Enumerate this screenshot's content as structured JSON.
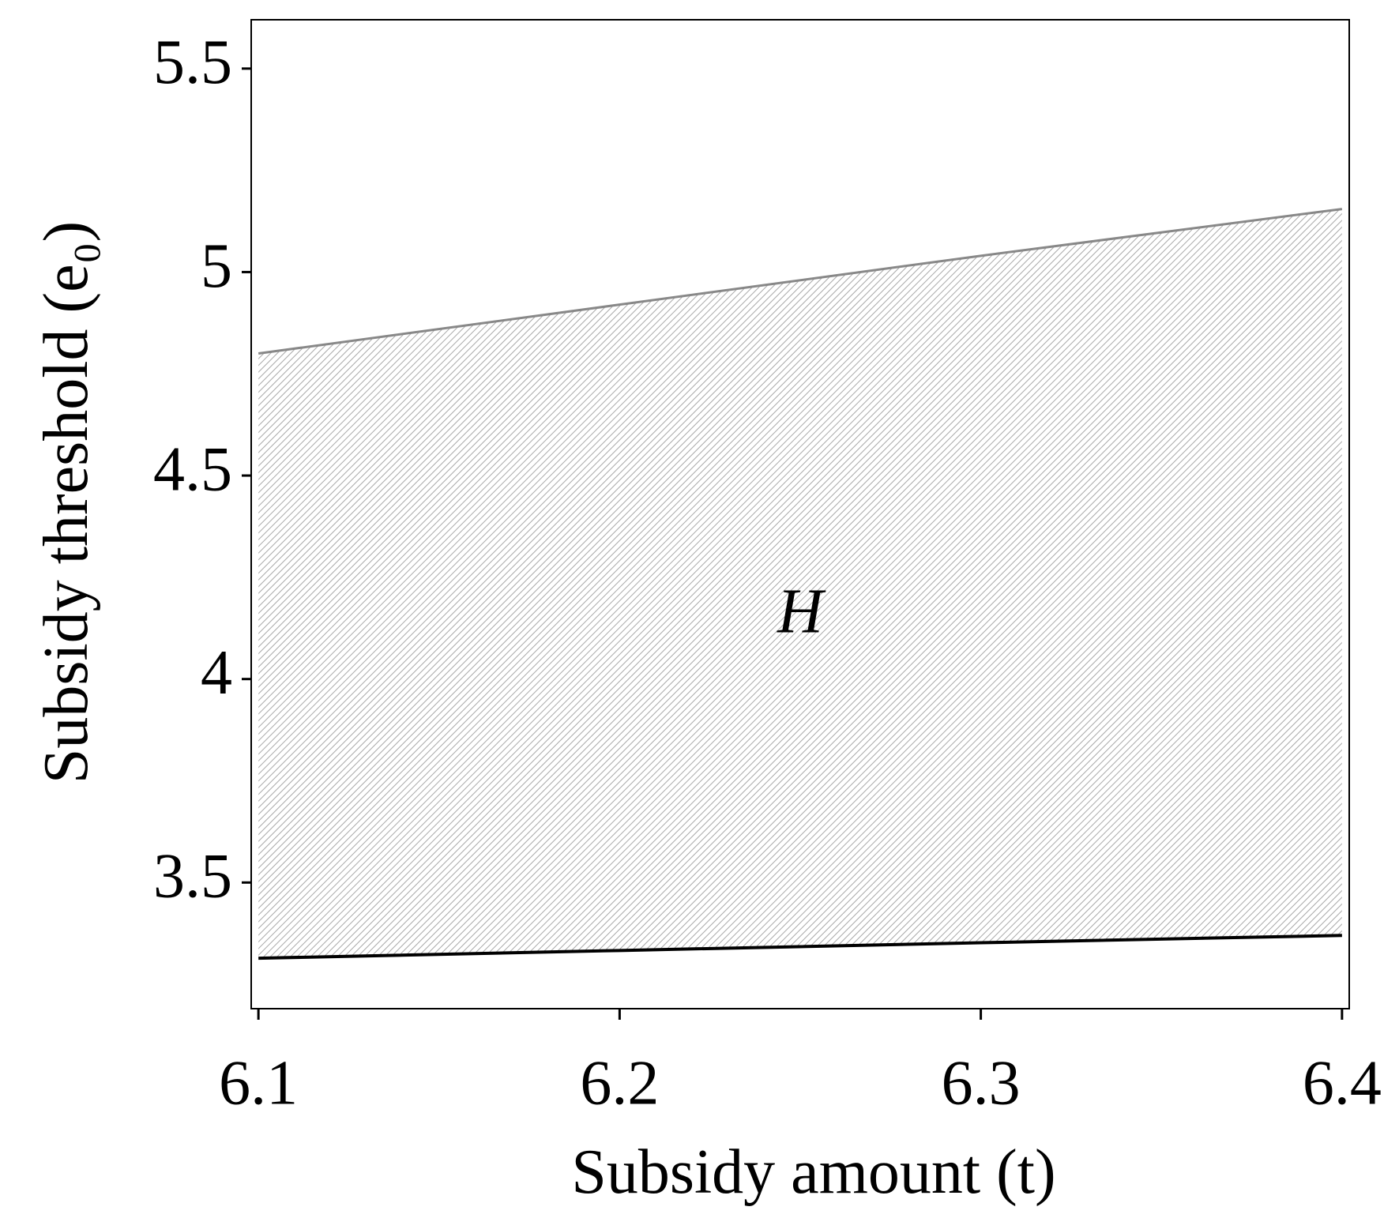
{
  "chart_data": {
    "type": "band",
    "x": [
      6.1,
      6.2,
      6.3,
      6.4
    ],
    "series": [
      {
        "color": "#888888",
        "values": [
          4.8,
          4.92,
          5.04,
          5.155
        ]
      },
      {
        "color": "#000000",
        "values": [
          3.314,
          3.333,
          3.352,
          3.37
        ]
      }
    ],
    "fill_color": "#9a9a9a",
    "xlabel": "Subsidy amount (t)",
    "ylabel": "Subsidy threshold (e₀)",
    "annotation": {
      "text": "H",
      "x": 6.25,
      "y": 4.15
    },
    "xlim": [
      6.098,
      6.402
    ],
    "ylim": [
      3.19,
      5.62
    ],
    "xticks": [
      6.1,
      6.2,
      6.3,
      6.4
    ],
    "yticks": [
      3.5,
      4,
      4.5,
      5,
      5.5
    ]
  }
}
